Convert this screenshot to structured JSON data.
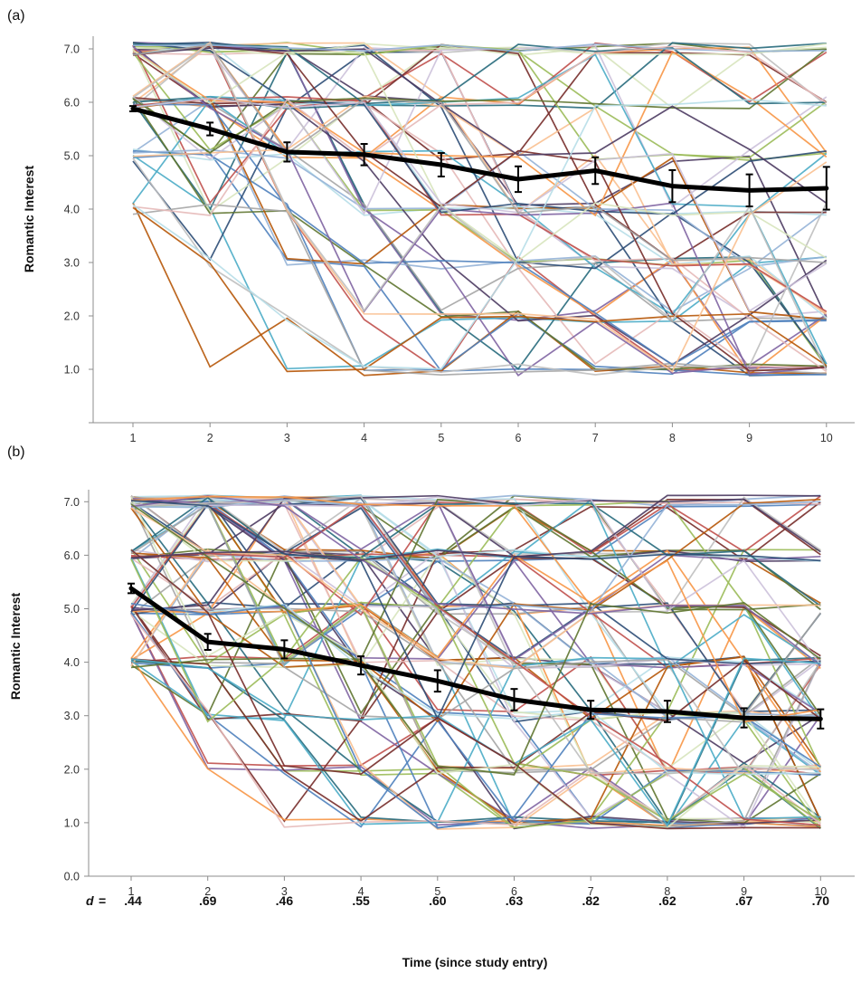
{
  "chart_data": [
    {
      "type": "line",
      "panel_label": "(a)",
      "ylabel": "Romantic Interest",
      "xlabel": "",
      "x": [
        1,
        2,
        3,
        4,
        5,
        6,
        7,
        8,
        9,
        10
      ],
      "ylim": [
        0,
        7.0
      ],
      "yticks": [
        "1.0",
        "2.0",
        "3.0",
        "4.0",
        "5.0",
        "6.0",
        "7.0"
      ],
      "grid": false,
      "mean_series": {
        "values": [
          5.88,
          5.5,
          5.07,
          5.02,
          4.83,
          4.56,
          4.72,
          4.43,
          4.35,
          4.39
        ],
        "error": [
          0.05,
          0.12,
          0.18,
          0.2,
          0.22,
          0.24,
          0.25,
          0.3,
          0.3,
          0.4
        ],
        "color": "#000000"
      },
      "individual_series_count": 60,
      "individual_series_seed": 11
    },
    {
      "type": "line",
      "panel_label": "(b)",
      "ylabel": "Romantic Interest",
      "xlabel": "Time (since study entry)",
      "x": [
        1,
        2,
        3,
        4,
        5,
        6,
        7,
        8,
        9,
        10
      ],
      "ylim": [
        0,
        7.0
      ],
      "yticks": [
        "0.0",
        "1.0",
        "2.0",
        "3.0",
        "4.0",
        "5.0",
        "6.0",
        "7.0"
      ],
      "grid": false,
      "mean_series": {
        "values": [
          5.38,
          4.38,
          4.24,
          3.94,
          3.65,
          3.3,
          3.11,
          3.08,
          2.96,
          2.94
        ],
        "error": [
          0.09,
          0.15,
          0.17,
          0.17,
          0.2,
          0.2,
          0.17,
          0.2,
          0.18,
          0.18
        ],
        "color": "#000000"
      },
      "individual_series_count": 90,
      "individual_series_seed": 37,
      "effect_sizes": {
        "label": "d",
        "equals": "=",
        "values": [
          ".44",
          ".69",
          ".46",
          ".55",
          ".60",
          ".63",
          ".82",
          ".62",
          ".67",
          ".70"
        ]
      }
    }
  ],
  "palette": [
    "#4f81bd",
    "#c0504d",
    "#9bbb59",
    "#8064a2",
    "#4bacc6",
    "#f79646",
    "#2c4d75",
    "#772c2a",
    "#5f7530",
    "#4d3b62",
    "#276a7c",
    "#b65708",
    "#95b3d7",
    "#e6b9b8",
    "#d7e4bd",
    "#ccc1da",
    "#b7dee8",
    "#fac090",
    "#a5a5a5",
    "#bfbfbf"
  ]
}
